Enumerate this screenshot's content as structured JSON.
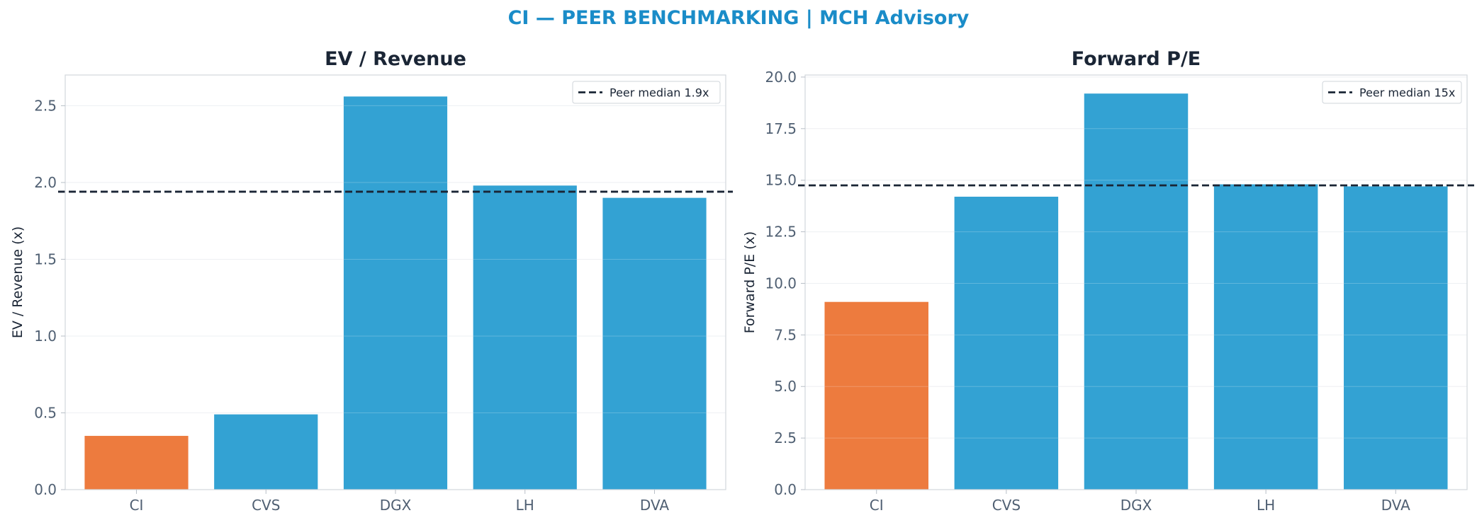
{
  "suptitle": "CI — PEER BENCHMARKING | MCH Advisory",
  "colors": {
    "title_accent": "#1a8cc8",
    "highlight_bar": "#ed7b3e",
    "peer_bar": "#33a2d3",
    "median_line": "#1a2535",
    "text_dark": "#1a2535",
    "tick_text": "#4f5f72"
  },
  "chart_data": [
    {
      "type": "bar",
      "title": "EV / Revenue",
      "xlabel": "",
      "ylabel": "EV / Revenue (x)",
      "categories": [
        "CI",
        "CVS",
        "DGX",
        "LH",
        "DVA"
      ],
      "values": [
        0.35,
        0.49,
        2.56,
        1.98,
        1.9
      ],
      "highlight": "CI",
      "ylim": [
        0,
        2.7
      ],
      "yticks": [
        0.0,
        0.5,
        1.0,
        1.5,
        2.0,
        2.5
      ],
      "ytick_labels": [
        "0.0",
        "0.5",
        "1.0",
        "1.5",
        "2.0",
        "2.5"
      ],
      "reference_line": {
        "value": 1.94,
        "label": "Peer median 1.9x",
        "style": "dashed"
      },
      "legend": "top-right",
      "grid": true
    },
    {
      "type": "bar",
      "title": "Forward P/E",
      "xlabel": "",
      "ylabel": "Forward P/E (x)",
      "categories": [
        "CI",
        "CVS",
        "DGX",
        "LH",
        "DVA"
      ],
      "values": [
        9.1,
        14.2,
        19.2,
        14.8,
        14.7
      ],
      "highlight": "CI",
      "ylim": [
        0,
        20.1
      ],
      "yticks": [
        0.0,
        2.5,
        5.0,
        7.5,
        10.0,
        12.5,
        15.0,
        17.5,
        20.0
      ],
      "ytick_labels": [
        "0.0",
        "2.5",
        "5.0",
        "7.5",
        "10.0",
        "12.5",
        "15.0",
        "17.5",
        "20.0"
      ],
      "reference_line": {
        "value": 14.75,
        "label": "Peer median 15x",
        "style": "dashed"
      },
      "legend": "top-right",
      "grid": true
    }
  ]
}
